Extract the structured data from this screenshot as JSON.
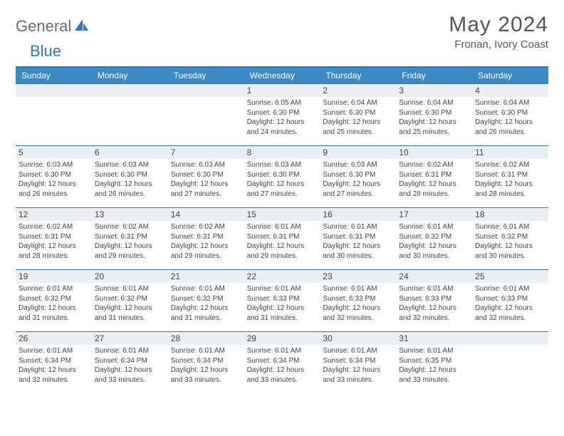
{
  "logo": {
    "text1": "General",
    "text2": "Blue"
  },
  "title": "May 2024",
  "location": "Fronan, Ivory Coast",
  "colors": {
    "accent": "#3b8ac4",
    "border": "#2f77b5",
    "dayBar": "#eceff1",
    "text": "#444444",
    "titleText": "#555555",
    "logoGray": "#6b6b6b"
  },
  "dayNames": [
    "Sunday",
    "Monday",
    "Tuesday",
    "Wednesday",
    "Thursday",
    "Friday",
    "Saturday"
  ],
  "weeks": [
    [
      {
        "num": "",
        "sunrise": "",
        "sunset": "",
        "daylight": ""
      },
      {
        "num": "",
        "sunrise": "",
        "sunset": "",
        "daylight": ""
      },
      {
        "num": "",
        "sunrise": "",
        "sunset": "",
        "daylight": ""
      },
      {
        "num": "1",
        "sunrise": "Sunrise: 6:05 AM",
        "sunset": "Sunset: 6:30 PM",
        "daylight": "Daylight: 12 hours and 24 minutes."
      },
      {
        "num": "2",
        "sunrise": "Sunrise: 6:04 AM",
        "sunset": "Sunset: 6:30 PM",
        "daylight": "Daylight: 12 hours and 25 minutes."
      },
      {
        "num": "3",
        "sunrise": "Sunrise: 6:04 AM",
        "sunset": "Sunset: 6:30 PM",
        "daylight": "Daylight: 12 hours and 25 minutes."
      },
      {
        "num": "4",
        "sunrise": "Sunrise: 6:04 AM",
        "sunset": "Sunset: 6:30 PM",
        "daylight": "Daylight: 12 hours and 26 minutes."
      }
    ],
    [
      {
        "num": "5",
        "sunrise": "Sunrise: 6:03 AM",
        "sunset": "Sunset: 6:30 PM",
        "daylight": "Daylight: 12 hours and 26 minutes."
      },
      {
        "num": "6",
        "sunrise": "Sunrise: 6:03 AM",
        "sunset": "Sunset: 6:30 PM",
        "daylight": "Daylight: 12 hours and 26 minutes."
      },
      {
        "num": "7",
        "sunrise": "Sunrise: 6:03 AM",
        "sunset": "Sunset: 6:30 PM",
        "daylight": "Daylight: 12 hours and 27 minutes."
      },
      {
        "num": "8",
        "sunrise": "Sunrise: 6:03 AM",
        "sunset": "Sunset: 6:30 PM",
        "daylight": "Daylight: 12 hours and 27 minutes."
      },
      {
        "num": "9",
        "sunrise": "Sunrise: 6:03 AM",
        "sunset": "Sunset: 6:30 PM",
        "daylight": "Daylight: 12 hours and 27 minutes."
      },
      {
        "num": "10",
        "sunrise": "Sunrise: 6:02 AM",
        "sunset": "Sunset: 6:31 PM",
        "daylight": "Daylight: 12 hours and 28 minutes."
      },
      {
        "num": "11",
        "sunrise": "Sunrise: 6:02 AM",
        "sunset": "Sunset: 6:31 PM",
        "daylight": "Daylight: 12 hours and 28 minutes."
      }
    ],
    [
      {
        "num": "12",
        "sunrise": "Sunrise: 6:02 AM",
        "sunset": "Sunset: 6:31 PM",
        "daylight": "Daylight: 12 hours and 28 minutes."
      },
      {
        "num": "13",
        "sunrise": "Sunrise: 6:02 AM",
        "sunset": "Sunset: 6:31 PM",
        "daylight": "Daylight: 12 hours and 29 minutes."
      },
      {
        "num": "14",
        "sunrise": "Sunrise: 6:02 AM",
        "sunset": "Sunset: 6:31 PM",
        "daylight": "Daylight: 12 hours and 29 minutes."
      },
      {
        "num": "15",
        "sunrise": "Sunrise: 6:01 AM",
        "sunset": "Sunset: 6:31 PM",
        "daylight": "Daylight: 12 hours and 29 minutes."
      },
      {
        "num": "16",
        "sunrise": "Sunrise: 6:01 AM",
        "sunset": "Sunset: 6:31 PM",
        "daylight": "Daylight: 12 hours and 30 minutes."
      },
      {
        "num": "17",
        "sunrise": "Sunrise: 6:01 AM",
        "sunset": "Sunset: 6:32 PM",
        "daylight": "Daylight: 12 hours and 30 minutes."
      },
      {
        "num": "18",
        "sunrise": "Sunrise: 6:01 AM",
        "sunset": "Sunset: 6:32 PM",
        "daylight": "Daylight: 12 hours and 30 minutes."
      }
    ],
    [
      {
        "num": "19",
        "sunrise": "Sunrise: 6:01 AM",
        "sunset": "Sunset: 6:32 PM",
        "daylight": "Daylight: 12 hours and 31 minutes."
      },
      {
        "num": "20",
        "sunrise": "Sunrise: 6:01 AM",
        "sunset": "Sunset: 6:32 PM",
        "daylight": "Daylight: 12 hours and 31 minutes."
      },
      {
        "num": "21",
        "sunrise": "Sunrise: 6:01 AM",
        "sunset": "Sunset: 6:32 PM",
        "daylight": "Daylight: 12 hours and 31 minutes."
      },
      {
        "num": "22",
        "sunrise": "Sunrise: 6:01 AM",
        "sunset": "Sunset: 6:33 PM",
        "daylight": "Daylight: 12 hours and 31 minutes."
      },
      {
        "num": "23",
        "sunrise": "Sunrise: 6:01 AM",
        "sunset": "Sunset: 6:33 PM",
        "daylight": "Daylight: 12 hours and 32 minutes."
      },
      {
        "num": "24",
        "sunrise": "Sunrise: 6:01 AM",
        "sunset": "Sunset: 6:33 PM",
        "daylight": "Daylight: 12 hours and 32 minutes."
      },
      {
        "num": "25",
        "sunrise": "Sunrise: 6:01 AM",
        "sunset": "Sunset: 6:33 PM",
        "daylight": "Daylight: 12 hours and 32 minutes."
      }
    ],
    [
      {
        "num": "26",
        "sunrise": "Sunrise: 6:01 AM",
        "sunset": "Sunset: 6:34 PM",
        "daylight": "Daylight: 12 hours and 32 minutes."
      },
      {
        "num": "27",
        "sunrise": "Sunrise: 6:01 AM",
        "sunset": "Sunset: 6:34 PM",
        "daylight": "Daylight: 12 hours and 33 minutes."
      },
      {
        "num": "28",
        "sunrise": "Sunrise: 6:01 AM",
        "sunset": "Sunset: 6:34 PM",
        "daylight": "Daylight: 12 hours and 33 minutes."
      },
      {
        "num": "29",
        "sunrise": "Sunrise: 6:01 AM",
        "sunset": "Sunset: 6:34 PM",
        "daylight": "Daylight: 12 hours and 33 minutes."
      },
      {
        "num": "30",
        "sunrise": "Sunrise: 6:01 AM",
        "sunset": "Sunset: 6:34 PM",
        "daylight": "Daylight: 12 hours and 33 minutes."
      },
      {
        "num": "31",
        "sunrise": "Sunrise: 6:01 AM",
        "sunset": "Sunset: 6:35 PM",
        "daylight": "Daylight: 12 hours and 33 minutes."
      },
      {
        "num": "",
        "sunrise": "",
        "sunset": "",
        "daylight": ""
      }
    ]
  ]
}
